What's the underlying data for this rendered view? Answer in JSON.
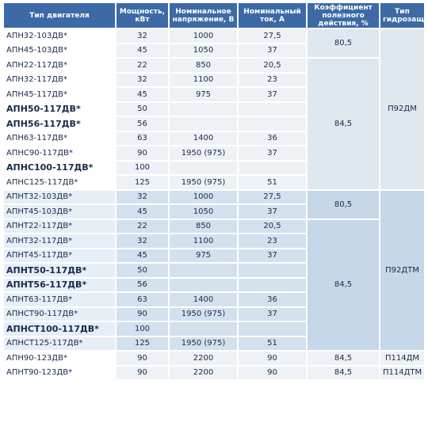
{
  "table": {
    "headers": [
      "Тип двигателя",
      "Мощность, кВт",
      "Номинальное напряжение, В",
      "Номинальный ток, А",
      "Коэффициент полезного действия, %",
      "Тип гидрозащиты"
    ],
    "rows": [
      [
        "АПН32-103ДВ*",
        32,
        1000,
        "27,5"
      ],
      [
        "АПН45-103ДВ*",
        45,
        1050,
        37
      ],
      [
        "АПН22-117ДВ*",
        22,
        850,
        "20,5"
      ],
      [
        "АПН32-117ДВ*",
        32,
        1100,
        23
      ],
      [
        "АПН45-117ДВ*",
        45,
        975,
        37
      ],
      [
        "АПН50-117ДВ*",
        50
      ],
      [
        "АПН56-117ДВ*",
        56
      ],
      [
        "АПН63-117ДВ*",
        63,
        1400,
        36
      ],
      [
        "АПНС90-117ДВ*",
        90,
        "1950 (975)",
        37
      ],
      [
        "АПНС100-117ДВ*",
        100
      ],
      [
        "АПНС125-117ДВ*",
        125,
        "1950 (975)",
        51
      ],
      [
        "АПНТ32-103ДВ*",
        32,
        1000,
        "27,5"
      ],
      [
        "АПНТ45-103ДВ*",
        45,
        1050,
        37
      ],
      [
        "АПНТ22-117ДВ*",
        22,
        850,
        "20,5"
      ],
      [
        "АПНТ32-117ДВ*",
        32,
        1100,
        23
      ],
      [
        "АПНТ45-117ДВ*",
        45,
        975,
        37
      ],
      [
        "АПНТ50-117ДВ*",
        50
      ],
      [
        "АПНТ56-117ДВ*",
        56
      ],
      [
        "АПНТ63-117ДВ*",
        63,
        1400,
        36
      ],
      [
        "АПНСТ90-117ДВ*",
        90,
        "1950 (975)",
        37
      ],
      [
        "АПНСТ100-117ДВ*",
        100
      ],
      [
        "АПНСТ125-117ДВ*",
        125,
        "1950 (975)",
        51
      ],
      [
        "АПН90-123ДВ*",
        90,
        2200,
        90,
        "84,5",
        "П114ДМ"
      ],
      [
        "АПНТ90-123ДВ*",
        90,
        2200,
        90,
        "84,5",
        "П114ДТМ"
      ]
    ],
    "efficiency": [
      "80,5",
      "84,5",
      "80,5",
      "84,5"
    ],
    "protection": [
      "П92ДМ",
      "П92ДТМ"
    ]
  }
}
